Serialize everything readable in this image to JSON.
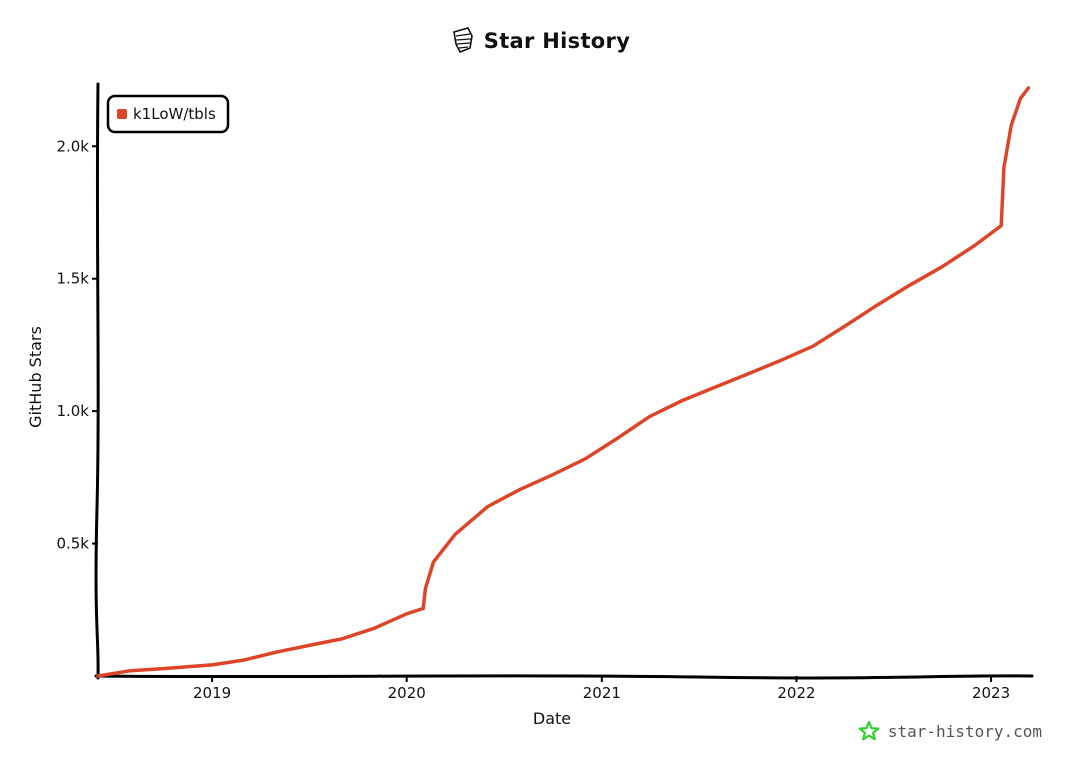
{
  "header": {
    "title": "Star History",
    "logo_icon": "star-history-logo-icon"
  },
  "watermark": {
    "text": "star-history.com",
    "icon": "star-icon",
    "icon_color": "#2fd12f"
  },
  "chart_data": {
    "type": "line",
    "title": "Star History",
    "xlabel": "Date",
    "ylabel": "GitHub Stars",
    "x_type": "date",
    "xlim": [
      "2018-06-01",
      "2023-03-15"
    ],
    "ylim": [
      0,
      2220
    ],
    "x_ticks": [
      {
        "date": "2019-01-01",
        "label": "2019"
      },
      {
        "date": "2020-01-01",
        "label": "2020"
      },
      {
        "date": "2021-01-01",
        "label": "2021"
      },
      {
        "date": "2022-01-01",
        "label": "2022"
      },
      {
        "date": "2023-01-01",
        "label": "2023"
      }
    ],
    "y_ticks": [
      {
        "value": 500,
        "label": "0.5k"
      },
      {
        "value": 1000,
        "label": "1.0k"
      },
      {
        "value": 1500,
        "label": "1.5k"
      },
      {
        "value": 2000,
        "label": "2.0k"
      }
    ],
    "grid": false,
    "legend_position": "top-left",
    "series": [
      {
        "name": "k1LoW/tbls",
        "color": "#dd4528",
        "points": [
          [
            "2018-06-01",
            0
          ],
          [
            "2018-08-01",
            20
          ],
          [
            "2018-10-01",
            28
          ],
          [
            "2019-01-01",
            42
          ],
          [
            "2019-03-01",
            60
          ],
          [
            "2019-05-01",
            90
          ],
          [
            "2019-07-01",
            115
          ],
          [
            "2019-09-01",
            140
          ],
          [
            "2019-11-01",
            180
          ],
          [
            "2020-01-01",
            235
          ],
          [
            "2020-02-01",
            255
          ],
          [
            "2020-02-05",
            330
          ],
          [
            "2020-02-20",
            430
          ],
          [
            "2020-04-01",
            535
          ],
          [
            "2020-06-01",
            640
          ],
          [
            "2020-08-01",
            705
          ],
          [
            "2020-10-01",
            760
          ],
          [
            "2020-12-01",
            820
          ],
          [
            "2021-02-01",
            900
          ],
          [
            "2021-04-01",
            980
          ],
          [
            "2021-06-01",
            1040
          ],
          [
            "2021-08-01",
            1090
          ],
          [
            "2021-10-01",
            1140
          ],
          [
            "2021-12-01",
            1190
          ],
          [
            "2022-02-01",
            1245
          ],
          [
            "2022-04-01",
            1320
          ],
          [
            "2022-06-01",
            1400
          ],
          [
            "2022-08-01",
            1475
          ],
          [
            "2022-10-01",
            1545
          ],
          [
            "2022-12-01",
            1625
          ],
          [
            "2023-01-20",
            1700
          ],
          [
            "2023-01-25",
            1920
          ],
          [
            "2023-02-08",
            2080
          ],
          [
            "2023-02-25",
            2180
          ],
          [
            "2023-03-12",
            2220
          ]
        ]
      }
    ]
  }
}
